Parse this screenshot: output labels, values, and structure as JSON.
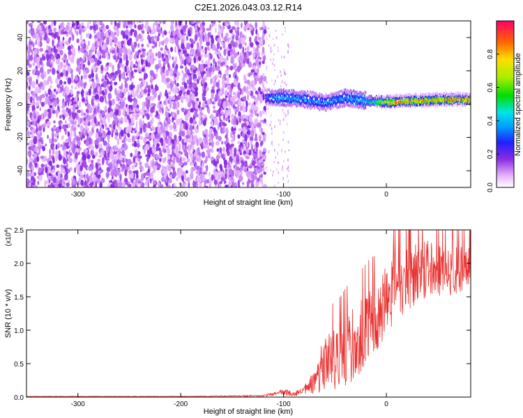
{
  "title": "C2E1.2026.043.03.12.R14",
  "chart_data": [
    {
      "type": "heatmap",
      "xlabel": "Height of straight line (km)",
      "ylabel": "Frequency (Hz)",
      "xlim": [
        -350,
        82
      ],
      "ylim": [
        -50,
        50
      ],
      "x_ticks": [
        -300,
        -200,
        -100,
        0
      ],
      "y_ticks": [
        -40,
        -20,
        0,
        20,
        40
      ],
      "colorbar": {
        "label": "Normalized spectral amplitude",
        "range": [
          0,
          1
        ],
        "ticks": [
          "0.0",
          "0.2",
          "0.4",
          "0.6",
          "0.8"
        ],
        "tick_values": [
          0,
          0.2,
          0.4,
          0.6,
          0.8
        ]
      },
      "noise_region": {
        "x_range": [
          -350,
          -118
        ],
        "freq_range": [
          -50,
          50
        ],
        "amplitude_range": [
          0.0,
          0.12
        ]
      },
      "signal_band": [
        {
          "x": -118,
          "freq": 4,
          "amplitude": 0.32
        },
        {
          "x": -100,
          "freq": 4,
          "amplitude": 0.42
        },
        {
          "x": -80,
          "freq": 3,
          "amplitude": 0.38
        },
        {
          "x": -60,
          "freq": 1,
          "amplitude": 0.35
        },
        {
          "x": -40,
          "freq": 4,
          "amplitude": 0.4
        },
        {
          "x": -20,
          "freq": 2,
          "amplitude": 0.45
        },
        {
          "x": 0,
          "freq": 1.5,
          "amplitude": 0.85
        },
        {
          "x": 20,
          "freq": 2,
          "amplitude": 0.9
        },
        {
          "x": 40,
          "freq": 2.5,
          "amplitude": 0.92
        },
        {
          "x": 60,
          "freq": 3,
          "amplitude": 0.93
        },
        {
          "x": 82,
          "freq": 3,
          "amplitude": 0.93
        }
      ]
    },
    {
      "type": "line",
      "xlabel": "Height of straight line (km)",
      "ylabel": "SNR (10 * v/v)",
      "y_scale_label": "(x10",
      "y_scale_exponent": "4",
      "y_scale_close": ")",
      "xlim": [
        -350,
        82
      ],
      "ylim": [
        0,
        2.5
      ],
      "x_ticks": [
        -300,
        -200,
        -100,
        0
      ],
      "y_ticks": [
        "0.0",
        "0.5",
        "1.0",
        "1.5",
        "2.0",
        "2.5"
      ],
      "y_tick_values": [
        0,
        0.5,
        1.0,
        1.5,
        2.0,
        2.5
      ],
      "color": "#e8312f",
      "series": [
        {
          "name": "SNR",
          "x": [
            -350,
            -300,
            -200,
            -120,
            -105,
            -100,
            -90,
            -80,
            -70,
            -62,
            -55,
            -45,
            -35,
            -25,
            -15,
            -5,
            0,
            10,
            20,
            30,
            40,
            50,
            60,
            70,
            82
          ],
          "y": [
            0.01,
            0.01,
            0.01,
            0.02,
            0.06,
            0.08,
            0.04,
            0.1,
            0.22,
            0.45,
            0.55,
            0.6,
            0.75,
            0.9,
            1.1,
            1.25,
            1.5,
            1.6,
            1.75,
            1.85,
            1.95,
            1.9,
            1.85,
            1.9,
            1.95
          ],
          "spread": [
            0.005,
            0.005,
            0.005,
            0.01,
            0.04,
            0.05,
            0.03,
            0.08,
            0.2,
            0.4,
            0.45,
            0.5,
            0.55,
            0.55,
            0.55,
            0.5,
            0.55,
            0.5,
            0.5,
            0.45,
            0.45,
            0.4,
            0.35,
            0.35,
            0.3
          ]
        }
      ]
    }
  ]
}
